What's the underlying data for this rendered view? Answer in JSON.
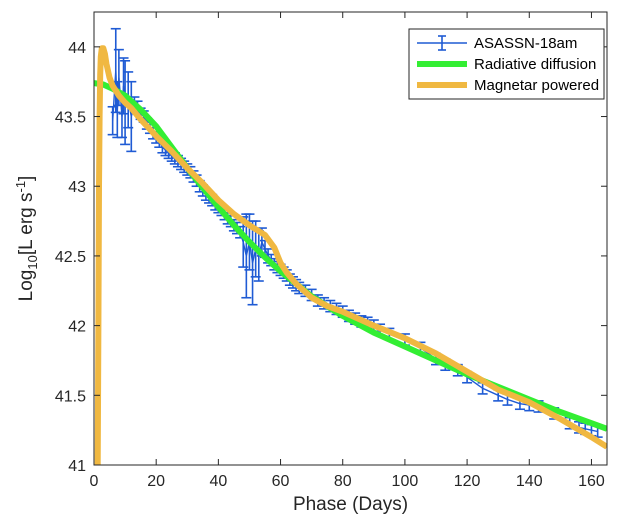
{
  "chart_data": {
    "type": "line",
    "xlabel": "Phase (Days)",
    "ylabel": {
      "prefix": "Log",
      "sub": "10",
      "mid": "[L erg s",
      "sup": "-1",
      "suffix": "]"
    },
    "xlim": [
      0,
      165
    ],
    "ylim": [
      41,
      44.25
    ],
    "xticks": [
      0,
      20,
      40,
      60,
      80,
      100,
      120,
      140,
      160
    ],
    "yticks": [
      41,
      41.5,
      42,
      42.5,
      43,
      43.5,
      44
    ],
    "ytick_labels": [
      "41",
      "41.5",
      "42",
      "42.5",
      "43",
      "43.5",
      "44"
    ],
    "grid": false,
    "legend_position": "top-right",
    "colors": {
      "observed": "#1f5bd4",
      "diffusion": "#33ee33",
      "magnetar": "#f0b841",
      "axis": "#262626"
    },
    "series": [
      {
        "name": "ASASSN-18am",
        "kind": "errorbar",
        "points": [
          {
            "x": 6,
            "y": 43.47,
            "err": 0.1
          },
          {
            "x": 7,
            "y": 43.83,
            "err": 0.3
          },
          {
            "x": 7.5,
            "y": 43.55,
            "err": 0.2
          },
          {
            "x": 8,
            "y": 43.78,
            "err": 0.2
          },
          {
            "x": 9,
            "y": 43.5,
            "err": 0.15
          },
          {
            "x": 9.5,
            "y": 43.72,
            "err": 0.2
          },
          {
            "x": 10,
            "y": 43.6,
            "err": 0.3
          },
          {
            "x": 11,
            "y": 43.62,
            "err": 0.2
          },
          {
            "x": 12,
            "y": 43.5,
            "err": 0.25
          },
          {
            "x": 13,
            "y": 43.6,
            "err": 0.04
          },
          {
            "x": 14,
            "y": 43.57,
            "err": 0.04
          },
          {
            "x": 15,
            "y": 43.52,
            "err": 0.04
          },
          {
            "x": 16,
            "y": 43.5,
            "err": 0.04
          },
          {
            "x": 17,
            "y": 43.45,
            "err": 0.04
          },
          {
            "x": 18,
            "y": 43.42,
            "err": 0.04
          },
          {
            "x": 19,
            "y": 43.38,
            "err": 0.04
          },
          {
            "x": 20,
            "y": 43.35,
            "err": 0.04
          },
          {
            "x": 21,
            "y": 43.32,
            "err": 0.04
          },
          {
            "x": 22,
            "y": 43.28,
            "err": 0.04
          },
          {
            "x": 23,
            "y": 43.26,
            "err": 0.04
          },
          {
            "x": 24,
            "y": 43.24,
            "err": 0.04
          },
          {
            "x": 25,
            "y": 43.22,
            "err": 0.04
          },
          {
            "x": 26,
            "y": 43.2,
            "err": 0.04
          },
          {
            "x": 27,
            "y": 43.18,
            "err": 0.04
          },
          {
            "x": 28,
            "y": 43.16,
            "err": 0.04
          },
          {
            "x": 29,
            "y": 43.14,
            "err": 0.04
          },
          {
            "x": 30,
            "y": 43.12,
            "err": 0.04
          },
          {
            "x": 31,
            "y": 43.1,
            "err": 0.04
          },
          {
            "x": 32,
            "y": 43.07,
            "err": 0.04
          },
          {
            "x": 33,
            "y": 43.04,
            "err": 0.04
          },
          {
            "x": 34,
            "y": 43.0,
            "err": 0.04
          },
          {
            "x": 35,
            "y": 42.97,
            "err": 0.04
          },
          {
            "x": 36,
            "y": 42.94,
            "err": 0.04
          },
          {
            "x": 37,
            "y": 42.92,
            "err": 0.04
          },
          {
            "x": 38,
            "y": 42.9,
            "err": 0.04
          },
          {
            "x": 39,
            "y": 42.87,
            "err": 0.04
          },
          {
            "x": 40,
            "y": 42.85,
            "err": 0.04
          },
          {
            "x": 41,
            "y": 42.83,
            "err": 0.04
          },
          {
            "x": 42,
            "y": 42.8,
            "err": 0.04
          },
          {
            "x": 43,
            "y": 42.77,
            "err": 0.04
          },
          {
            "x": 44,
            "y": 42.75,
            "err": 0.04
          },
          {
            "x": 45,
            "y": 42.72,
            "err": 0.04
          },
          {
            "x": 46,
            "y": 42.7,
            "err": 0.04
          },
          {
            "x": 47,
            "y": 42.67,
            "err": 0.04
          },
          {
            "x": 48,
            "y": 42.6,
            "err": 0.18
          },
          {
            "x": 49,
            "y": 42.5,
            "err": 0.3
          },
          {
            "x": 50,
            "y": 42.6,
            "err": 0.2
          },
          {
            "x": 51,
            "y": 42.45,
            "err": 0.3
          },
          {
            "x": 52,
            "y": 42.55,
            "err": 0.2
          },
          {
            "x": 53,
            "y": 42.5,
            "err": 0.18
          },
          {
            "x": 54,
            "y": 42.6,
            "err": 0.1
          },
          {
            "x": 55,
            "y": 42.55,
            "err": 0.06
          },
          {
            "x": 56,
            "y": 42.5,
            "err": 0.05
          },
          {
            "x": 57,
            "y": 42.47,
            "err": 0.04
          },
          {
            "x": 58,
            "y": 42.44,
            "err": 0.04
          },
          {
            "x": 59,
            "y": 42.42,
            "err": 0.04
          },
          {
            "x": 60,
            "y": 42.4,
            "err": 0.04
          },
          {
            "x": 61,
            "y": 42.38,
            "err": 0.04
          },
          {
            "x": 62,
            "y": 42.36,
            "err": 0.04
          },
          {
            "x": 63,
            "y": 42.33,
            "err": 0.04
          },
          {
            "x": 64,
            "y": 42.31,
            "err": 0.04
          },
          {
            "x": 65,
            "y": 42.29,
            "err": 0.04
          },
          {
            "x": 66,
            "y": 42.27,
            "err": 0.04
          },
          {
            "x": 68,
            "y": 42.25,
            "err": 0.04
          },
          {
            "x": 70,
            "y": 42.22,
            "err": 0.04
          },
          {
            "x": 72,
            "y": 42.18,
            "err": 0.04
          },
          {
            "x": 74,
            "y": 42.16,
            "err": 0.04
          },
          {
            "x": 76,
            "y": 42.14,
            "err": 0.04
          },
          {
            "x": 78,
            "y": 42.12,
            "err": 0.04
          },
          {
            "x": 80,
            "y": 42.1,
            "err": 0.04
          },
          {
            "x": 82,
            "y": 42.07,
            "err": 0.04
          },
          {
            "x": 84,
            "y": 42.05,
            "err": 0.04
          },
          {
            "x": 86,
            "y": 42.03,
            "err": 0.04
          },
          {
            "x": 88,
            "y": 42.02,
            "err": 0.04
          },
          {
            "x": 90,
            "y": 42.0,
            "err": 0.04
          },
          {
            "x": 92,
            "y": 41.97,
            "err": 0.04
          },
          {
            "x": 95,
            "y": 41.94,
            "err": 0.04
          },
          {
            "x": 100,
            "y": 41.9,
            "err": 0.04
          },
          {
            "x": 105,
            "y": 41.84,
            "err": 0.04
          },
          {
            "x": 110,
            "y": 41.76,
            "err": 0.04
          },
          {
            "x": 113,
            "y": 41.72,
            "err": 0.04
          },
          {
            "x": 117,
            "y": 41.68,
            "err": 0.04
          },
          {
            "x": 120,
            "y": 41.63,
            "err": 0.04
          },
          {
            "x": 125,
            "y": 41.55,
            "err": 0.04
          },
          {
            "x": 130,
            "y": 41.5,
            "err": 0.04
          },
          {
            "x": 133,
            "y": 41.47,
            "err": 0.04
          },
          {
            "x": 137,
            "y": 41.44,
            "err": 0.04
          },
          {
            "x": 140,
            "y": 41.43,
            "err": 0.04
          },
          {
            "x": 143,
            "y": 41.42,
            "err": 0.04
          },
          {
            "x": 148,
            "y": 41.37,
            "err": 0.04
          },
          {
            "x": 153,
            "y": 41.3,
            "err": 0.04
          },
          {
            "x": 156,
            "y": 41.27,
            "err": 0.04
          },
          {
            "x": 158,
            "y": 41.26,
            "err": 0.04
          },
          {
            "x": 160,
            "y": 41.25,
            "err": 0.04
          },
          {
            "x": 162,
            "y": 41.24,
            "err": 0.04
          }
        ]
      },
      {
        "name": "Radiative diffusion",
        "kind": "line",
        "x": [
          0,
          3,
          6,
          10,
          15,
          20,
          25,
          30,
          35,
          40,
          45,
          50,
          55,
          60,
          65,
          70,
          80,
          90,
          100,
          110,
          120,
          130,
          140,
          150,
          160,
          165
        ],
        "y": [
          43.74,
          43.73,
          43.7,
          43.65,
          43.55,
          43.43,
          43.28,
          43.13,
          42.99,
          42.85,
          42.72,
          42.6,
          42.49,
          42.39,
          42.3,
          42.21,
          42.07,
          41.95,
          41.85,
          41.75,
          41.65,
          41.56,
          41.47,
          41.38,
          41.3,
          41.26
        ]
      },
      {
        "name": "Magnetar powered",
        "kind": "line",
        "x": [
          1.2,
          1.4,
          1.6,
          1.8,
          2.0,
          2.2,
          2.5,
          3.0,
          3.5,
          4.0,
          5.0,
          6.0,
          8.0,
          10.0,
          12.0,
          15.0,
          20.0,
          25.0,
          30.0,
          35.0,
          40.0,
          45.0,
          50.0,
          55.0,
          58.0,
          60.0,
          62.0,
          65.0,
          70.0,
          75.0,
          80.0,
          90.0,
          100.0,
          110.0,
          120.0,
          130.0,
          140.0,
          150.0,
          160.0,
          165.0
        ],
        "y": [
          41.0,
          42.0,
          43.0,
          43.5,
          43.8,
          43.93,
          43.99,
          43.99,
          43.95,
          43.88,
          43.78,
          43.72,
          43.65,
          43.6,
          43.56,
          43.48,
          43.36,
          43.25,
          43.13,
          43.02,
          42.9,
          42.8,
          42.72,
          42.65,
          42.56,
          42.45,
          42.38,
          42.3,
          42.2,
          42.14,
          42.1,
          42.0,
          41.91,
          41.8,
          41.67,
          41.54,
          41.45,
          41.33,
          41.2,
          41.13
        ]
      }
    ]
  }
}
